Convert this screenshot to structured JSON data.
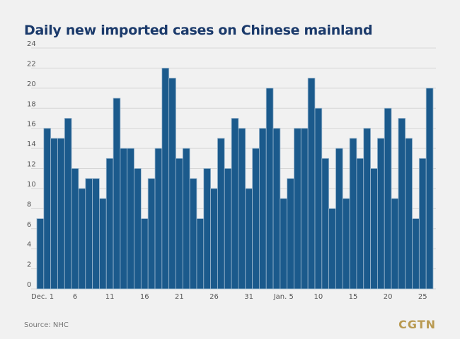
{
  "chart_data": {
    "type": "bar",
    "title": "Daily new imported cases on Chinese mainland",
    "xlabel": "",
    "ylabel": "",
    "ylim": [
      0,
      24
    ],
    "yticks": [
      0,
      2,
      4,
      6,
      8,
      10,
      12,
      14,
      16,
      18,
      20,
      22,
      24
    ],
    "grid": true,
    "categories": [
      "Dec. 1",
      "Dec. 2",
      "Dec. 3",
      "Dec. 4",
      "Dec. 5",
      "Dec. 6",
      "Dec. 7",
      "Dec. 8",
      "Dec. 9",
      "Dec. 10",
      "Dec. 11",
      "Dec. 12",
      "Dec. 13",
      "Dec. 14",
      "Dec. 15",
      "Dec. 16",
      "Dec. 17",
      "Dec. 18",
      "Dec. 19",
      "Dec. 20",
      "Dec. 21",
      "Dec. 22",
      "Dec. 23",
      "Dec. 24",
      "Dec. 25",
      "Dec. 26",
      "Dec. 27",
      "Dec. 28",
      "Dec. 29",
      "Dec. 30",
      "Dec. 31",
      "Jan. 1",
      "Jan. 2",
      "Jan. 3",
      "Jan. 4",
      "Jan. 5",
      "Jan. 6",
      "Jan. 7",
      "Jan. 8",
      "Jan. 9",
      "Jan. 10",
      "Jan. 11",
      "Jan. 12",
      "Jan. 13",
      "Jan. 14",
      "Jan. 15",
      "Jan. 16",
      "Jan. 17",
      "Jan. 18",
      "Jan. 19",
      "Jan. 20",
      "Jan. 21",
      "Jan. 22",
      "Jan. 23",
      "Jan. 24",
      "Jan. 25",
      "Jan. 26"
    ],
    "values": [
      7,
      16,
      15,
      15,
      17,
      12,
      10,
      11,
      11,
      9,
      13,
      19,
      14,
      14,
      12,
      7,
      11,
      14,
      22,
      21,
      13,
      14,
      11,
      7,
      12,
      10,
      15,
      12,
      17,
      16,
      10,
      14,
      16,
      20,
      16,
      9,
      11,
      16,
      16,
      21,
      18,
      13,
      8,
      14,
      9,
      15,
      13,
      16,
      12,
      15,
      18,
      9,
      17,
      15,
      7,
      13,
      20
    ],
    "xtick_labels": [
      {
        "index": 0,
        "label": "Dec. 1"
      },
      {
        "index": 5,
        "label": "6"
      },
      {
        "index": 10,
        "label": "11"
      },
      {
        "index": 15,
        "label": "16"
      },
      {
        "index": 20,
        "label": "21"
      },
      {
        "index": 25,
        "label": "26"
      },
      {
        "index": 30,
        "label": "31"
      },
      {
        "index": 35,
        "label": "Jan. 5"
      },
      {
        "index": 40,
        "label": "10"
      },
      {
        "index": 45,
        "label": "15"
      },
      {
        "index": 50,
        "label": "20"
      },
      {
        "index": 55,
        "label": "25"
      }
    ],
    "bar_color": "#1b5a8c"
  },
  "footer": {
    "source": "Source: NHC",
    "logo": "CGTN"
  }
}
